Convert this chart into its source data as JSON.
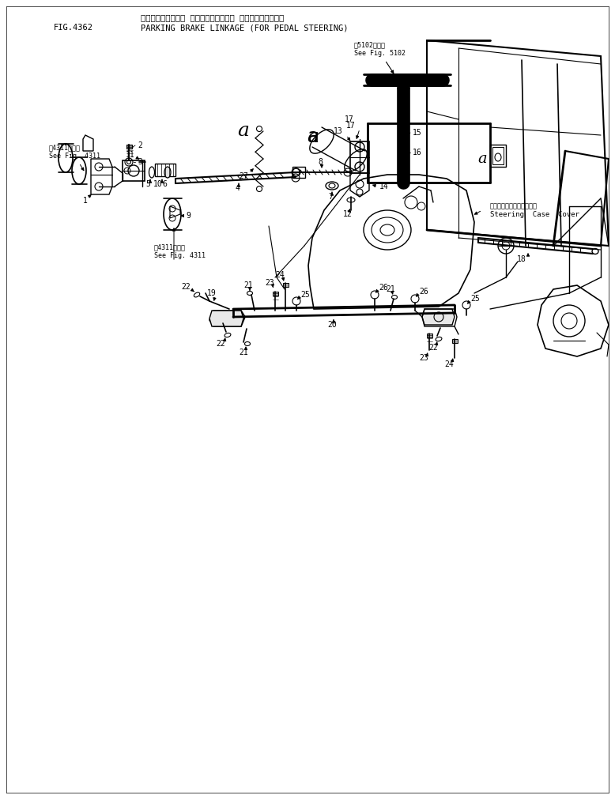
{
  "fig_number": "FIG.4362",
  "title_japanese": "パーキングブレーキ リンケージ（ペダル ステアリングヨウ）",
  "title_english": "PARKING BRAKE LINKAGE (FOR PEDAL STEERING)",
  "see_fig_5102_jp": "第5102図参照",
  "see_fig_5102_en": "See Fig. 5102",
  "see_fig_4311_jp": "第4311図参照",
  "see_fig_4311_en": "See Fig. 4311",
  "steering_cover_jp": "ステアリングケースカバー",
  "steering_cover_en": "Steering  Case  Cover",
  "bg_color": "#ffffff",
  "lc": "#000000"
}
